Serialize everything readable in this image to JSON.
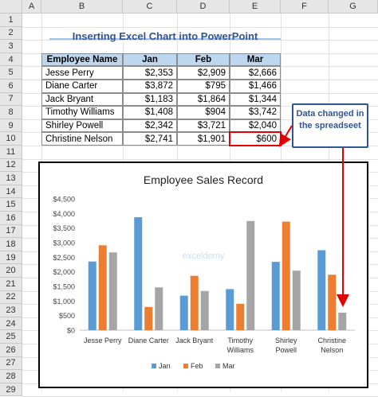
{
  "columns": [
    "A",
    "B",
    "C",
    "D",
    "E",
    "F",
    "G"
  ],
  "rows": [
    "1",
    "2",
    "3",
    "4",
    "5",
    "6",
    "7",
    "8",
    "9",
    "10",
    "11",
    "12",
    "13",
    "14",
    "15",
    "16",
    "17",
    "18",
    "19",
    "20",
    "21",
    "22",
    "23",
    "24",
    "25",
    "26",
    "27",
    "28",
    "29"
  ],
  "title": "Inserting Excel Chart into PowerPoint",
  "table": {
    "headers": [
      "Employee Name",
      "Jan",
      "Feb",
      "Mar"
    ],
    "rows": [
      [
        "Jesse Perry",
        "$2,353",
        "$2,909",
        "$2,666"
      ],
      [
        "Diane Carter",
        "$3,872",
        "$795",
        "$1,466"
      ],
      [
        "Jack Bryant",
        "$1,183",
        "$1,864",
        "$1,344"
      ],
      [
        "Timothy Williams",
        "$1,408",
        "$904",
        "$3,742"
      ],
      [
        "Shirley Powell",
        "$2,342",
        "$3,721",
        "$2,040"
      ],
      [
        "Christine Nelson",
        "$2,741",
        "$1,901",
        "$600"
      ]
    ]
  },
  "callout": {
    "text": "Data changed in the spreadseet"
  },
  "watermark": "exceldemy",
  "colors": {
    "jan": "#5b9bd5",
    "feb": "#ed7d31",
    "mar": "#a5a5a5",
    "title": "#2f5597",
    "header_fill": "#bdd7ee",
    "highlight": "#e00000"
  },
  "chart_data": {
    "type": "bar",
    "title": "Employee Sales Record",
    "categories": [
      [
        "Jesse Perry"
      ],
      [
        "Diane Carter"
      ],
      [
        "Jack Bryant"
      ],
      [
        "Timothy",
        "Williams"
      ],
      [
        "Shirley",
        "Powell"
      ],
      [
        "Christine",
        "Nelson"
      ]
    ],
    "series": [
      {
        "name": "Jan",
        "values": [
          2353,
          3872,
          1183,
          1408,
          2342,
          2741
        ]
      },
      {
        "name": "Feb",
        "values": [
          2909,
          795,
          1864,
          904,
          3721,
          1901
        ]
      },
      {
        "name": "Mar",
        "values": [
          2666,
          1466,
          1344,
          3742,
          2040,
          600
        ]
      }
    ],
    "yticks": [
      "$0",
      "$500",
      "$1,000",
      "$1,500",
      "$2,000",
      "$2,500",
      "$3,000",
      "$3,500",
      "$4,000",
      "$4,500"
    ],
    "ylim": [
      0,
      4500
    ],
    "grid": false,
    "legend": "bottom"
  }
}
